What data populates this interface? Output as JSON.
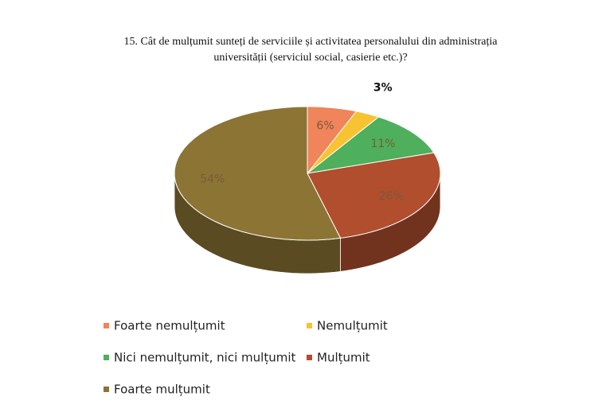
{
  "chart_data": {
    "type": "pie",
    "title": [
      "15. Cât de mulțumit sunteți de serviciile și activitatea personalului din administrația",
      "universității (serviciul social, casierie etc.)?"
    ],
    "categories": [
      "Foarte nemulțumit",
      "Nemulțumit",
      "Nici nemulțumit, nici mulțumit",
      "Mulțumit",
      "Foarte mulțumit"
    ],
    "values": [
      6,
      3,
      11,
      26,
      54
    ],
    "value_labels": [
      "6%",
      "3%",
      "11%",
      "26%",
      "54%"
    ],
    "colors": [
      "#f0845a",
      "#f7c330",
      "#4eaf5c",
      "#b04e2e",
      "#8c7434"
    ],
    "legend": "bottom"
  }
}
